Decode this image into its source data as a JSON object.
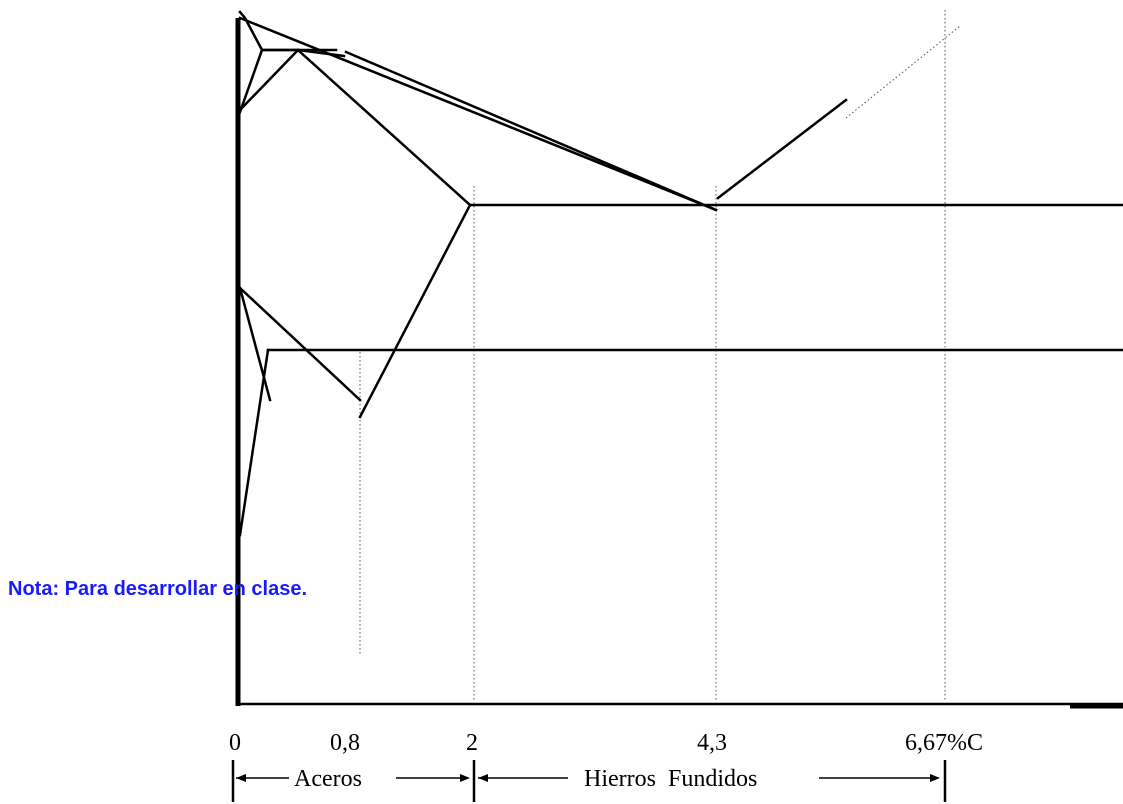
{
  "diagram": {
    "x_ticks": [
      "0",
      "0,8",
      "2",
      "4,3",
      "6,67%C"
    ],
    "ranges": {
      "steels": "Aceros",
      "cast_irons": "Hierros  Fundidos"
    },
    "note": "Nota: Para desarrollar en clase."
  }
}
